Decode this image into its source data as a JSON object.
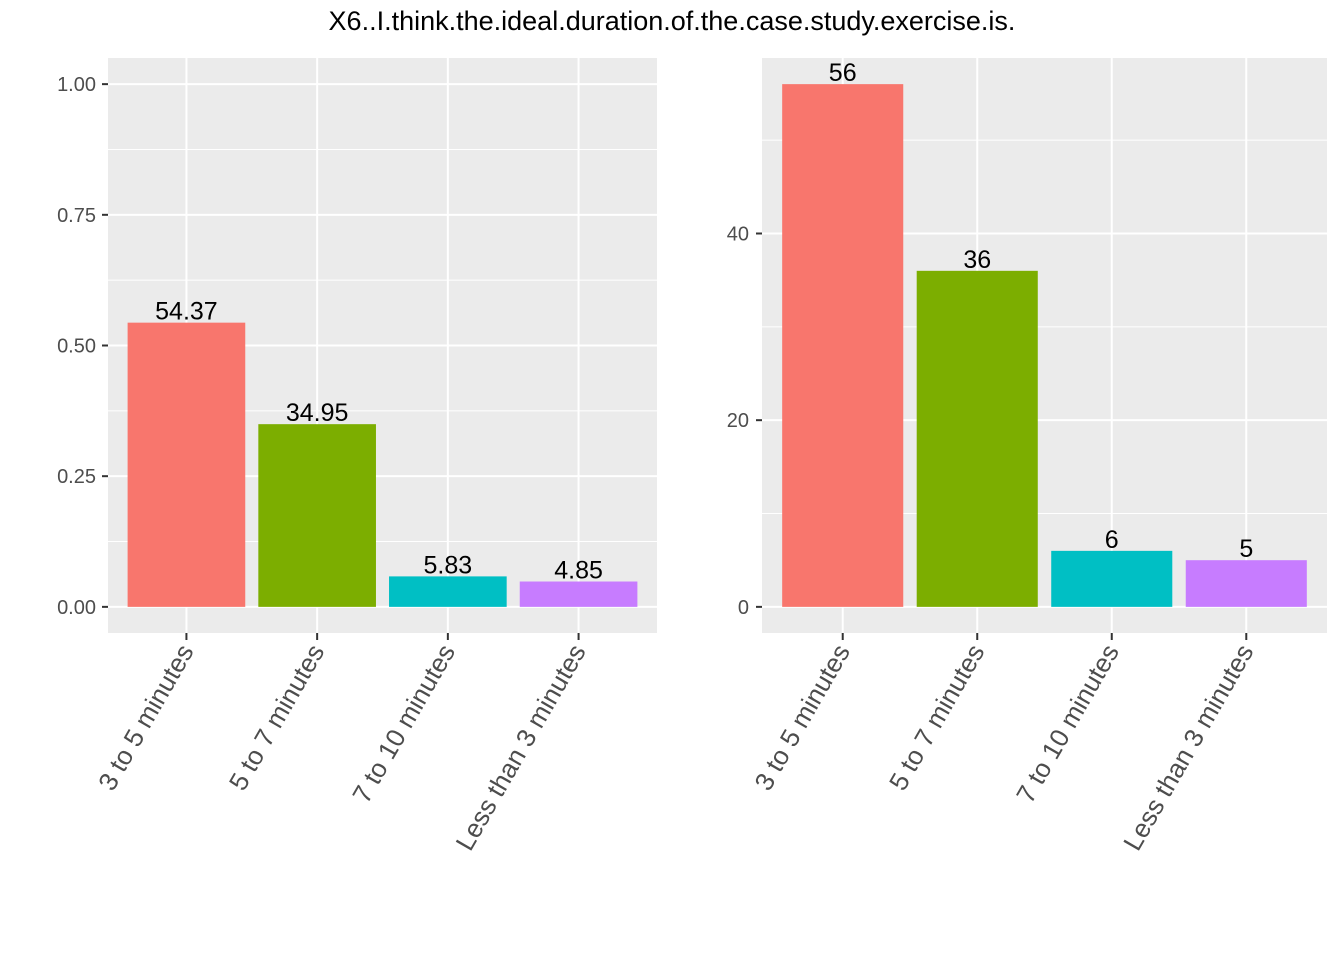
{
  "title": "X6..I.think.the.ideal.duration.of.the.case.study.exercise.is.",
  "chart_data": [
    {
      "type": "bar",
      "categories": [
        "3 to 5 minutes",
        "5 to 7 minutes",
        "7 to 10 minutes",
        "Less than 3 minutes"
      ],
      "values": [
        0.5437,
        0.3495,
        0.0583,
        0.0485
      ],
      "labels": [
        "54.37",
        "34.95",
        "5.83",
        "4.85"
      ],
      "colors": [
        "#F8766D",
        "#7CAE00",
        "#00BFC4",
        "#C77CFF"
      ],
      "ylim": [
        -0.05,
        1.05
      ],
      "yticks": [
        0,
        0.25,
        0.5,
        0.75,
        1
      ],
      "ytick_labels": [
        "0.00",
        "0.25",
        "0.50",
        "0.75",
        "1.00"
      ],
      "xlabel": "",
      "ylabel": "",
      "grid": true,
      "legend": "none"
    },
    {
      "type": "bar",
      "categories": [
        "3 to 5 minutes",
        "5 to 7 minutes",
        "7 to 10 minutes",
        "Less than 3 minutes"
      ],
      "values": [
        56,
        36,
        6,
        5
      ],
      "labels": [
        "56",
        "36",
        "6",
        "5"
      ],
      "colors": [
        "#F8766D",
        "#7CAE00",
        "#00BFC4",
        "#C77CFF"
      ],
      "ylim": [
        -2.8,
        58.8
      ],
      "yticks": [
        0,
        20,
        40
      ],
      "ytick_labels": [
        "0",
        "20",
        "40"
      ],
      "xlabel": "",
      "ylabel": "",
      "grid": true,
      "legend": "none"
    }
  ],
  "style": {
    "panel_bg": "#EBEBEB",
    "grid_color": "#FFFFFF",
    "tick_color": "#333333",
    "tick_label_color": "#4D4D4D",
    "value_label_color": "#000000"
  }
}
